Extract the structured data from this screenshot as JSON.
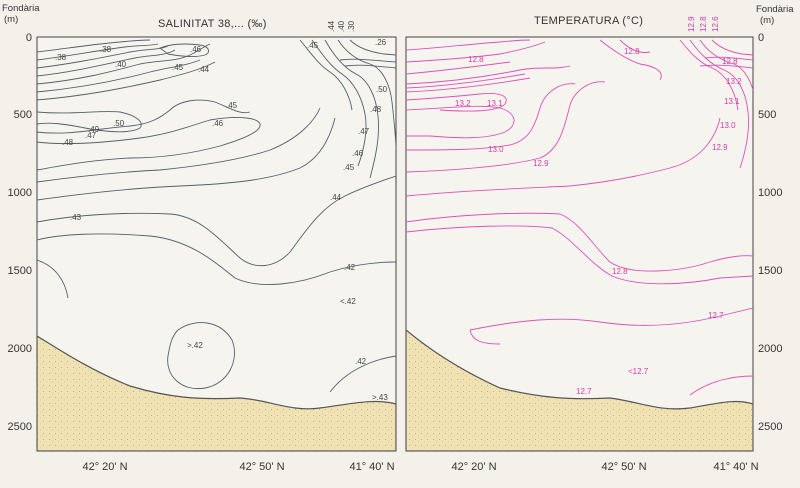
{
  "left_panel": {
    "title": "SALINITAT 38,... (‰)",
    "depth_axis_label": [
      "Fondària",
      "(m)"
    ],
    "depth_ticks": [
      "0",
      "500",
      "1000",
      "1500",
      "2000",
      "2500"
    ],
    "x_ticks": [
      "42° 20' N",
      "42° 50' N",
      "41° 40' N"
    ],
    "contour_labels": [
      ".38",
      ".38",
      ".40",
      ".46",
      ".45",
      ".44",
      ".49",
      ".50",
      ".47",
      ".48",
      ".45",
      ".46",
      ".43",
      ".45",
      ".26",
      ".44",
      ".40",
      ".30",
      ".50",
      ".48",
      ".47",
      ".46",
      ".45",
      ".44",
      ".42",
      "<.42",
      ">.42",
      ".42",
      ">.43"
    ]
  },
  "right_panel": {
    "title": "TEMPERATURA (°C)",
    "depth_axis_label": [
      "Fondària",
      "(m)"
    ],
    "depth_ticks": [
      "0",
      "500",
      "1000",
      "1500",
      "2000",
      "2500"
    ],
    "x_ticks": [
      "42° 20' N",
      "42° 50' N",
      "41° 40' N"
    ],
    "contour_labels": [
      "12.8",
      "13.2",
      "13.1",
      "13.0",
      "12.9",
      "12.8",
      "12.9",
      "12.8",
      "12.6",
      "12.8",
      "13.2",
      "13.1",
      "13.0",
      "12.9",
      "12.8",
      "12.7",
      "<12.7",
      "12.7"
    ]
  },
  "colors": {
    "salinity_isoline": "#556068",
    "temperature_isoline": "#e04fb8",
    "seabed_fill": "#f1e2b3",
    "background": "#f4f1ea"
  }
}
